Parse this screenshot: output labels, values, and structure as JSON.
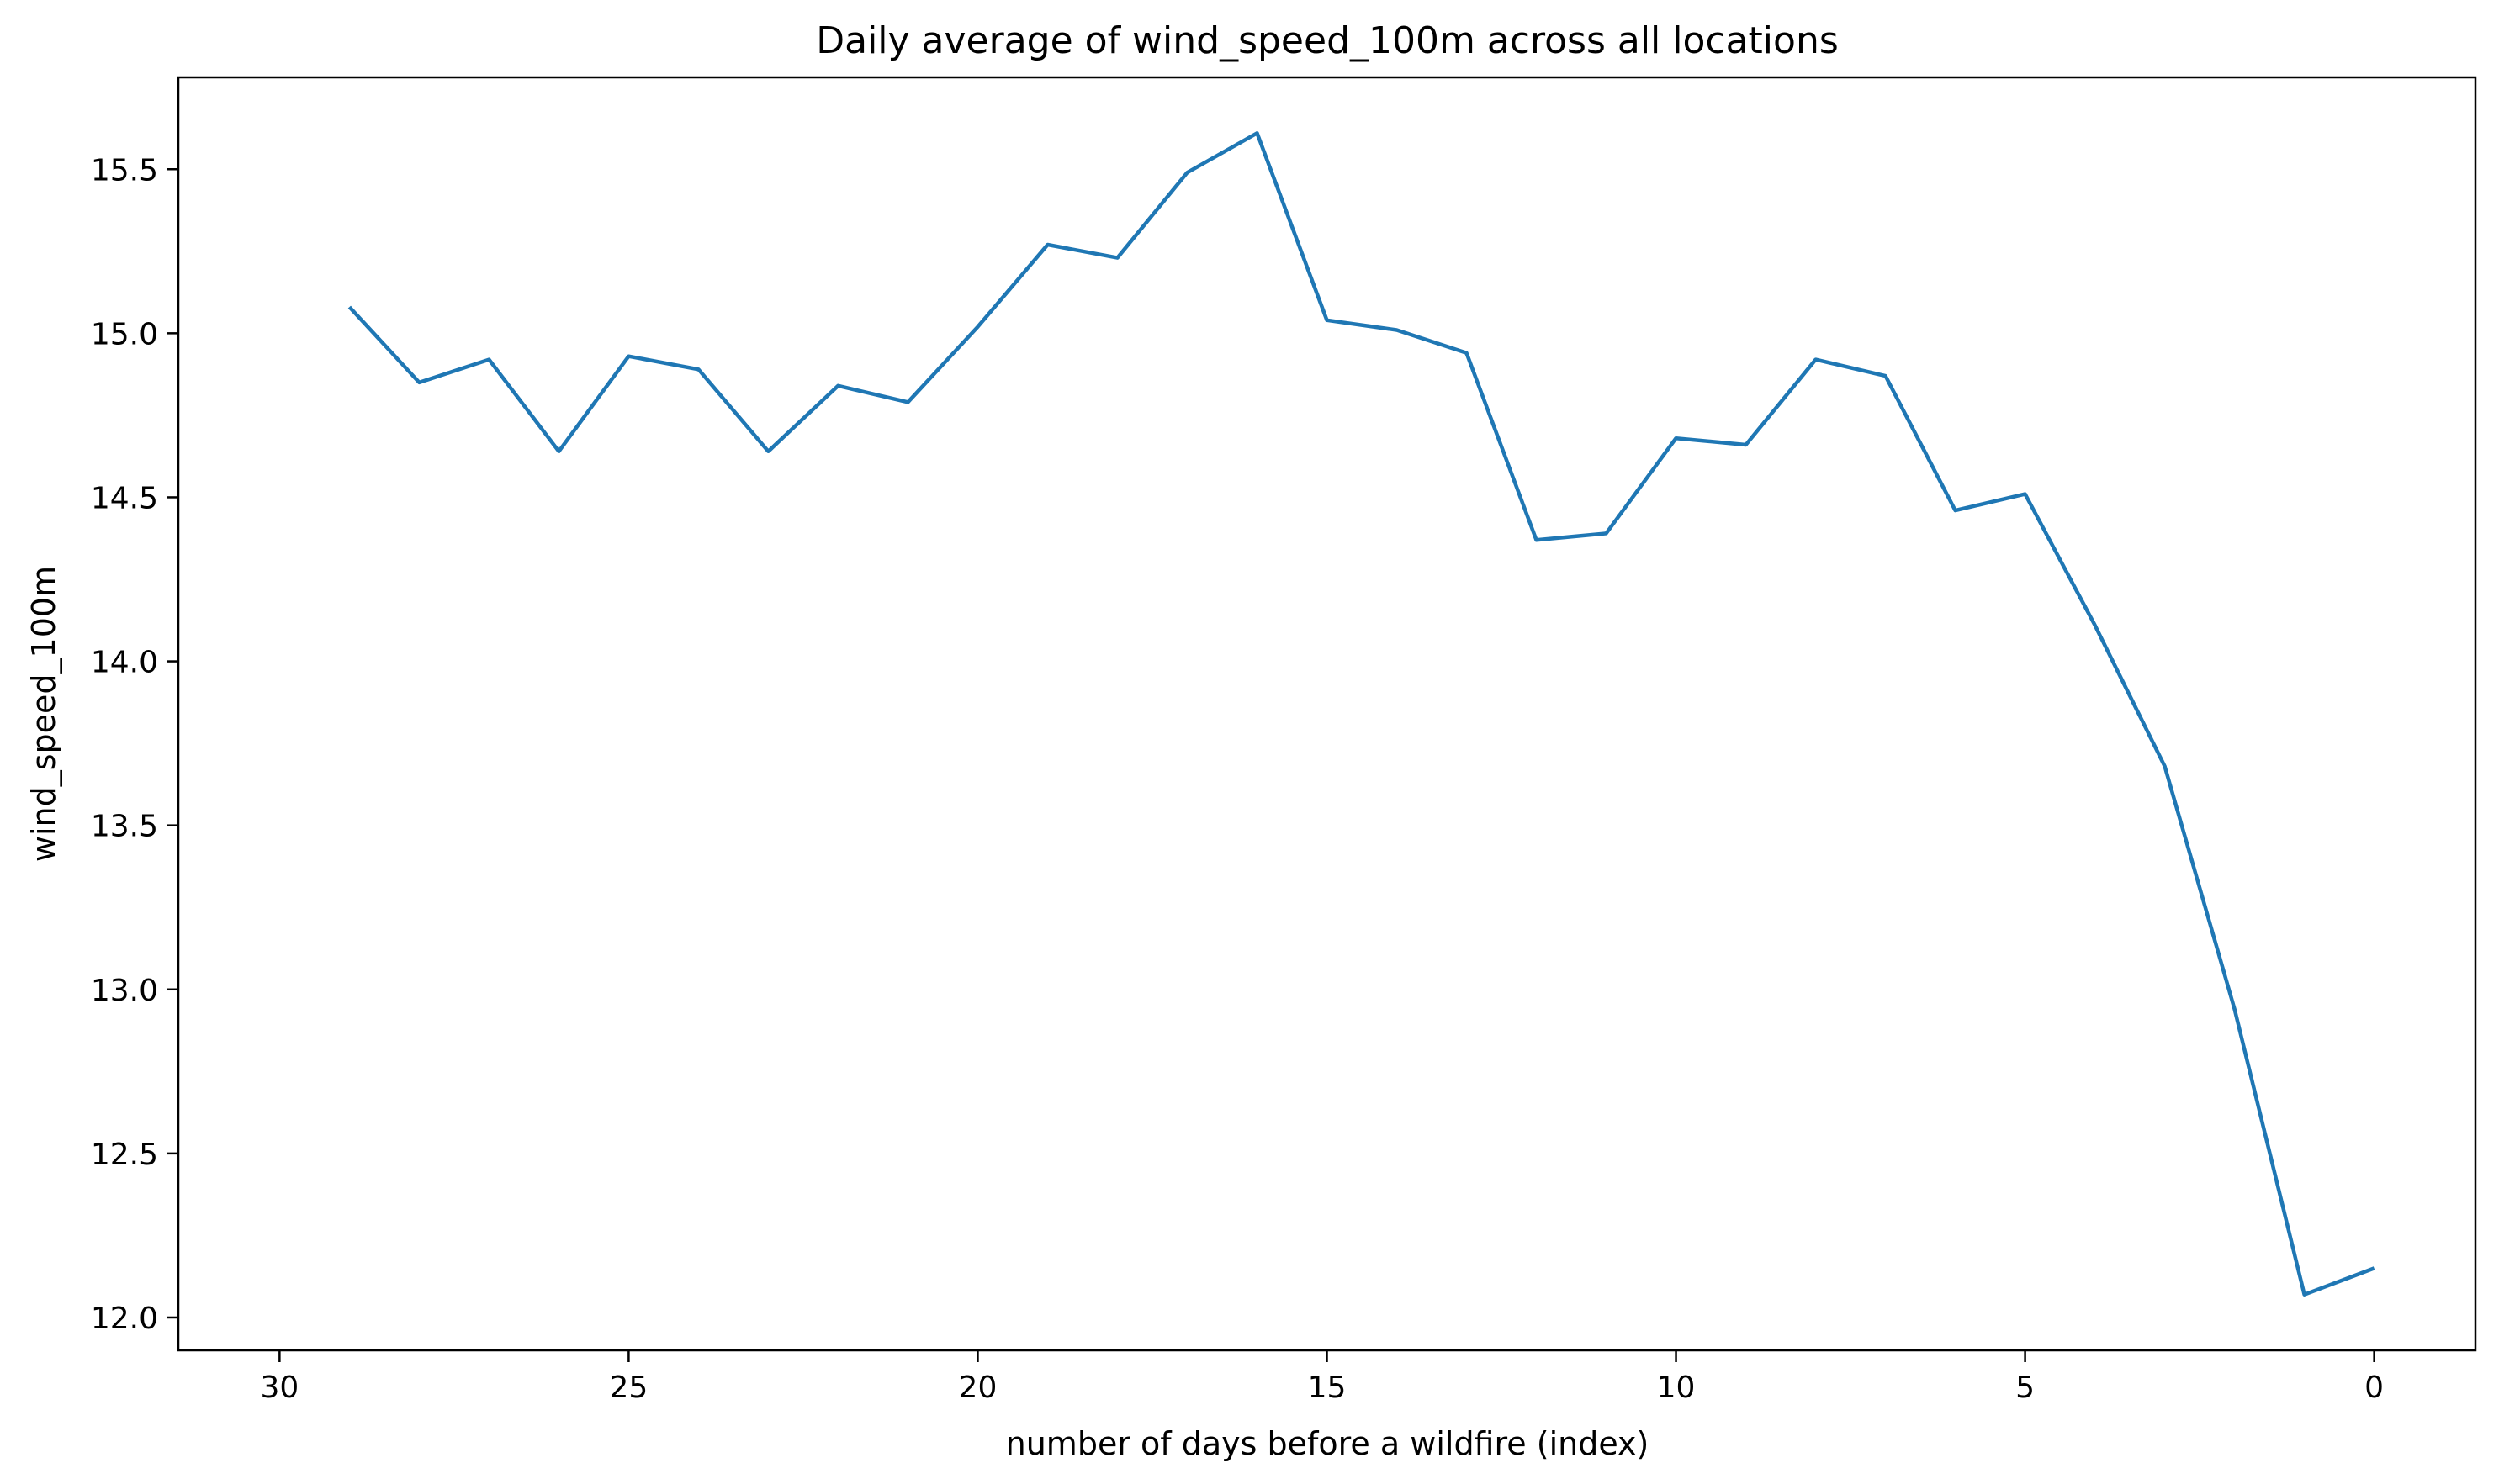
{
  "chart_data": {
    "type": "line",
    "title": "Daily average of wind_speed_100m across all locations",
    "xlabel": "number of days before a wildfire (index)",
    "ylabel": "wind_speed_100m",
    "xlim": [
      31.45,
      -1.45
    ],
    "ylim": [
      11.9,
      15.78
    ],
    "x_inverted": true,
    "grid": false,
    "xticks": [
      30,
      25,
      20,
      15,
      10,
      5,
      0
    ],
    "xtick_labels": [
      "30",
      "25",
      "20",
      "15",
      "10",
      "5",
      "0"
    ],
    "yticks": [
      12.0,
      12.5,
      13.0,
      13.5,
      14.0,
      14.5,
      15.0,
      15.5
    ],
    "ytick_labels": [
      "12.0",
      "12.5",
      "13.0",
      "13.5",
      "14.0",
      "14.5",
      "15.0",
      "15.5"
    ],
    "series": [
      {
        "color": "#1f77b4",
        "x": [
          29,
          28,
          27,
          26,
          25,
          24,
          23,
          22,
          21,
          20,
          19,
          18,
          17,
          16,
          15,
          14,
          13,
          12,
          11,
          10,
          9,
          8,
          7,
          6,
          5,
          4,
          3,
          2,
          1,
          0
        ],
        "values": [
          15.08,
          14.85,
          14.92,
          14.64,
          14.93,
          14.89,
          14.64,
          14.84,
          14.79,
          15.02,
          15.27,
          15.23,
          15.49,
          15.61,
          15.04,
          15.01,
          14.94,
          14.37,
          14.39,
          14.68,
          14.66,
          14.92,
          14.87,
          14.46,
          14.51,
          14.11,
          13.68,
          12.94,
          12.07,
          12.15
        ]
      }
    ]
  }
}
